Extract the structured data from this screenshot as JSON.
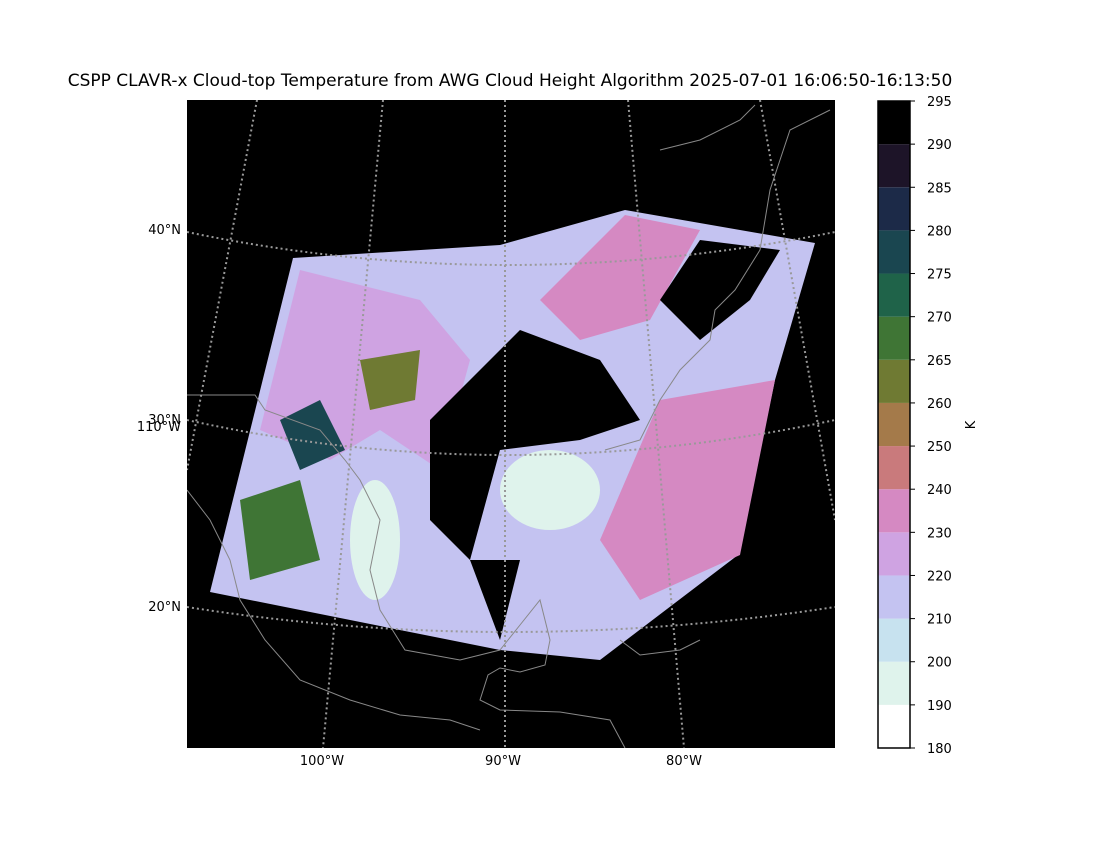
{
  "title": "CSPP CLAVR-x Cloud-top Temperature from AWG Cloud Height Algorithm 2025-07-01 16:06:50-16:13:50",
  "map": {
    "lat_labels": [
      "40°N",
      "30°N",
      "20°N"
    ],
    "lon_labels_left": [
      "110°W"
    ],
    "lon_labels_bottom": [
      "100°W",
      "90°W",
      "80°W"
    ]
  },
  "colorbar": {
    "label": "K",
    "ticks": [
      180,
      190,
      200,
      210,
      220,
      230,
      240,
      250,
      260,
      265,
      270,
      275,
      280,
      285,
      290,
      295
    ],
    "colors": [
      "#ffffff",
      "#dff3ec",
      "#c7e2ef",
      "#c4c3f1",
      "#cfa3e2",
      "#d589c2",
      "#c97a7c",
      "#a47a4a",
      "#6f7a33",
      "#3f7535",
      "#1f6349",
      "#1a4650",
      "#1c2a48",
      "#1d1428",
      "#000000"
    ]
  }
}
